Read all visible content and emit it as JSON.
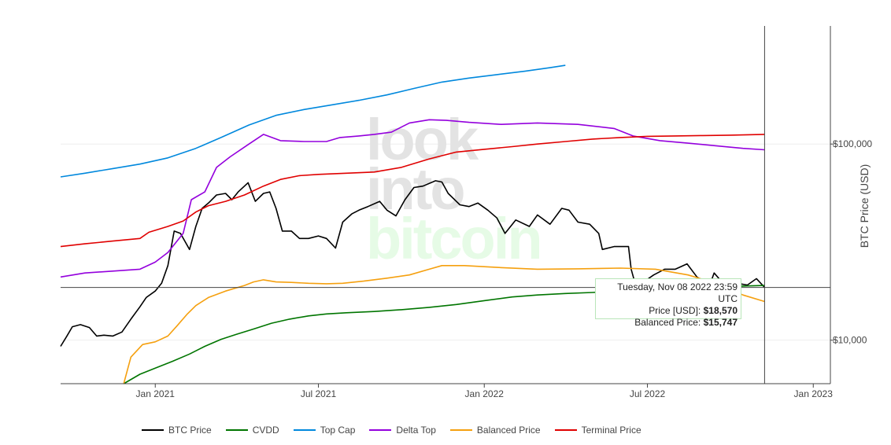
{
  "chart_data": {
    "type": "line",
    "scale_y": "log",
    "ylabel": "BTC Price (USD)",
    "x_range": [
      "2020-09-18",
      "2023-01-20"
    ],
    "y_range": [
      6000,
      400000
    ],
    "x_ticks": [
      {
        "date": "2021-01-01",
        "label": "Jan 2021"
      },
      {
        "date": "2021-07-01",
        "label": "Jul 2021"
      },
      {
        "date": "2022-01-01",
        "label": "Jan 2022"
      },
      {
        "date": "2022-07-01",
        "label": "Jul 2022"
      },
      {
        "date": "2023-01-01",
        "label": "Jan 2023"
      }
    ],
    "y_ticks": [
      {
        "value": 10000,
        "label": "$10,000"
      },
      {
        "value": 100000,
        "label": "$100,000"
      }
    ],
    "series": [
      {
        "name": "BTC Price",
        "color": "#000000",
        "points": [
          [
            "2020-09-18",
            9300
          ],
          [
            "2020-09-25",
            10500
          ],
          [
            "2020-10-01",
            11700
          ],
          [
            "2020-10-10",
            12000
          ],
          [
            "2020-10-20",
            11600
          ],
          [
            "2020-10-28",
            10500
          ],
          [
            "2020-11-05",
            10600
          ],
          [
            "2020-11-15",
            10500
          ],
          [
            "2020-11-25",
            11000
          ],
          [
            "2020-12-05",
            12800
          ],
          [
            "2020-12-15",
            14800
          ],
          [
            "2020-12-22",
            16500
          ],
          [
            "2021-01-01",
            17800
          ],
          [
            "2021-01-08",
            19500
          ],
          [
            "2021-01-15",
            24000
          ],
          [
            "2021-01-22",
            36000
          ],
          [
            "2021-01-29",
            35000
          ],
          [
            "2021-02-08",
            29000
          ],
          [
            "2021-02-15",
            38000
          ],
          [
            "2021-02-22",
            47000
          ],
          [
            "2021-03-01",
            50000
          ],
          [
            "2021-03-10",
            55000
          ],
          [
            "2021-03-20",
            56000
          ],
          [
            "2021-03-27",
            52000
          ],
          [
            "2021-04-03",
            57000
          ],
          [
            "2021-04-14",
            63500
          ],
          [
            "2021-04-22",
            51000
          ],
          [
            "2021-05-01",
            56000
          ],
          [
            "2021-05-08",
            57000
          ],
          [
            "2021-05-15",
            47000
          ],
          [
            "2021-05-22",
            36000
          ],
          [
            "2021-06-01",
            36000
          ],
          [
            "2021-06-10",
            33000
          ],
          [
            "2021-06-20",
            33000
          ],
          [
            "2021-07-01",
            34000
          ],
          [
            "2021-07-10",
            33000
          ],
          [
            "2021-07-20",
            29500
          ],
          [
            "2021-07-28",
            40000
          ],
          [
            "2021-08-07",
            44000
          ],
          [
            "2021-08-15",
            46000
          ],
          [
            "2021-08-25",
            48000
          ],
          [
            "2021-09-07",
            51000
          ],
          [
            "2021-09-15",
            46000
          ],
          [
            "2021-09-25",
            43000
          ],
          [
            "2021-10-05",
            52000
          ],
          [
            "2021-10-15",
            60000
          ],
          [
            "2021-10-25",
            61000
          ],
          [
            "2021-11-08",
            65000
          ],
          [
            "2021-11-15",
            64000
          ],
          [
            "2021-11-22",
            56000
          ],
          [
            "2021-12-05",
            49000
          ],
          [
            "2021-12-15",
            48000
          ],
          [
            "2021-12-25",
            50000
          ],
          [
            "2022-01-05",
            46000
          ],
          [
            "2022-01-15",
            42000
          ],
          [
            "2022-01-24",
            35000
          ],
          [
            "2022-02-05",
            41000
          ],
          [
            "2022-02-20",
            38000
          ],
          [
            "2022-03-01",
            43500
          ],
          [
            "2022-03-15",
            39000
          ],
          [
            "2022-03-28",
            47000
          ],
          [
            "2022-04-05",
            46000
          ],
          [
            "2022-04-15",
            40000
          ],
          [
            "2022-04-28",
            39000
          ],
          [
            "2022-05-08",
            35000
          ],
          [
            "2022-05-12",
            29000
          ],
          [
            "2022-05-25",
            30000
          ],
          [
            "2022-06-10",
            30000
          ],
          [
            "2022-06-13",
            23000
          ],
          [
            "2022-06-18",
            19000
          ],
          [
            "2022-06-28",
            20000
          ],
          [
            "2022-07-08",
            21500
          ],
          [
            "2022-07-20",
            23000
          ],
          [
            "2022-08-01",
            23000
          ],
          [
            "2022-08-14",
            24500
          ],
          [
            "2022-08-25",
            21000
          ],
          [
            "2022-09-08",
            19000
          ],
          [
            "2022-09-13",
            22000
          ],
          [
            "2022-09-25",
            19000
          ],
          [
            "2022-10-08",
            19500
          ],
          [
            "2022-10-20",
            19100
          ],
          [
            "2022-10-30",
            20600
          ],
          [
            "2022-11-08",
            18570
          ]
        ]
      },
      {
        "name": "CVDD",
        "color": "#007500",
        "points": [
          [
            "2020-11-27",
            6000
          ],
          [
            "2020-12-15",
            6700
          ],
          [
            "2021-01-01",
            7200
          ],
          [
            "2021-01-20",
            7800
          ],
          [
            "2021-02-08",
            8500
          ],
          [
            "2021-02-25",
            9300
          ],
          [
            "2021-03-15",
            10100
          ],
          [
            "2021-04-01",
            10700
          ],
          [
            "2021-04-20",
            11400
          ],
          [
            "2021-05-10",
            12200
          ],
          [
            "2021-05-30",
            12800
          ],
          [
            "2021-06-20",
            13300
          ],
          [
            "2021-07-10",
            13600
          ],
          [
            "2021-08-01",
            13800
          ],
          [
            "2021-09-01",
            14000
          ],
          [
            "2021-10-01",
            14300
          ],
          [
            "2021-11-01",
            14700
          ],
          [
            "2021-12-01",
            15200
          ],
          [
            "2022-01-01",
            15900
          ],
          [
            "2022-02-01",
            16600
          ],
          [
            "2022-03-01",
            17000
          ],
          [
            "2022-04-01",
            17300
          ],
          [
            "2022-05-01",
            17500
          ],
          [
            "2022-06-01",
            17800
          ],
          [
            "2022-07-01",
            18000
          ],
          [
            "2022-08-01",
            18200
          ],
          [
            "2022-09-01",
            18500
          ],
          [
            "2022-10-01",
            18800
          ],
          [
            "2022-11-08",
            19000
          ]
        ]
      },
      {
        "name": "Top Cap",
        "color": "#0088dd",
        "points": [
          [
            "2020-09-18",
            68000
          ],
          [
            "2020-10-15",
            71000
          ],
          [
            "2020-11-15",
            75000
          ],
          [
            "2020-12-15",
            79000
          ],
          [
            "2021-01-15",
            85000
          ],
          [
            "2021-02-15",
            95000
          ],
          [
            "2021-03-15",
            108000
          ],
          [
            "2021-04-15",
            125000
          ],
          [
            "2021-05-15",
            140000
          ],
          [
            "2021-06-15",
            150000
          ],
          [
            "2021-07-15",
            158000
          ],
          [
            "2021-08-15",
            167000
          ],
          [
            "2021-09-15",
            178000
          ],
          [
            "2021-10-15",
            192000
          ],
          [
            "2021-11-15",
            207000
          ],
          [
            "2021-12-15",
            217000
          ],
          [
            "2022-01-15",
            226000
          ],
          [
            "2022-02-15",
            235000
          ],
          [
            "2022-03-15",
            245000
          ],
          [
            "2022-04-01",
            252000
          ]
        ]
      },
      {
        "name": "Delta Top",
        "color": "#9400dd",
        "points": [
          [
            "2020-09-18",
            21000
          ],
          [
            "2020-10-15",
            22000
          ],
          [
            "2020-11-15",
            22500
          ],
          [
            "2020-12-15",
            23000
          ],
          [
            "2021-01-01",
            25000
          ],
          [
            "2021-01-15",
            28000
          ],
          [
            "2021-02-01",
            35000
          ],
          [
            "2021-02-10",
            52000
          ],
          [
            "2021-02-25",
            57000
          ],
          [
            "2021-03-10",
            76000
          ],
          [
            "2021-03-25",
            86000
          ],
          [
            "2021-04-15",
            100000
          ],
          [
            "2021-05-01",
            112000
          ],
          [
            "2021-05-20",
            104000
          ],
          [
            "2021-06-15",
            103000
          ],
          [
            "2021-07-10",
            103000
          ],
          [
            "2021-07-25",
            108000
          ],
          [
            "2021-08-15",
            110000
          ],
          [
            "2021-09-01",
            112000
          ],
          [
            "2021-09-20",
            115000
          ],
          [
            "2021-10-10",
            128000
          ],
          [
            "2021-11-01",
            133000
          ],
          [
            "2021-11-20",
            132000
          ],
          [
            "2021-12-15",
            129000
          ],
          [
            "2022-01-20",
            126000
          ],
          [
            "2022-03-01",
            128000
          ],
          [
            "2022-04-15",
            126000
          ],
          [
            "2022-05-25",
            120000
          ],
          [
            "2022-06-15",
            110000
          ],
          [
            "2022-07-15",
            104000
          ],
          [
            "2022-08-15",
            101000
          ],
          [
            "2022-09-15",
            98000
          ],
          [
            "2022-10-15",
            95000
          ],
          [
            "2022-11-08",
            93500
          ]
        ]
      },
      {
        "name": "Balanced Price",
        "color": "#f5a00f",
        "points": [
          [
            "2020-11-27",
            6000
          ],
          [
            "2020-12-05",
            8200
          ],
          [
            "2020-12-18",
            9500
          ],
          [
            "2021-01-01",
            9800
          ],
          [
            "2021-01-15",
            10500
          ],
          [
            "2021-01-25",
            11800
          ],
          [
            "2021-02-05",
            13500
          ],
          [
            "2021-02-15",
            15000
          ],
          [
            "2021-03-01",
            16500
          ],
          [
            "2021-03-20",
            17800
          ],
          [
            "2021-04-10",
            19000
          ],
          [
            "2021-04-20",
            19800
          ],
          [
            "2021-05-01",
            20300
          ],
          [
            "2021-05-15",
            19800
          ],
          [
            "2021-06-01",
            19700
          ],
          [
            "2021-06-20",
            19500
          ],
          [
            "2021-07-10",
            19400
          ],
          [
            "2021-07-28",
            19500
          ],
          [
            "2021-08-20",
            20000
          ],
          [
            "2021-09-15",
            20700
          ],
          [
            "2021-10-10",
            21500
          ],
          [
            "2021-11-01",
            23000
          ],
          [
            "2021-11-15",
            24000
          ],
          [
            "2021-12-10",
            24000
          ],
          [
            "2022-01-15",
            23500
          ],
          [
            "2022-03-01",
            23000
          ],
          [
            "2022-04-15",
            23100
          ],
          [
            "2022-06-01",
            23300
          ],
          [
            "2022-07-10",
            23000
          ],
          [
            "2022-08-15",
            21500
          ],
          [
            "2022-09-15",
            19500
          ],
          [
            "2022-10-15",
            17000
          ],
          [
            "2022-11-08",
            15747
          ]
        ]
      },
      {
        "name": "Terminal Price",
        "color": "#e00000",
        "points": [
          [
            "2020-09-18",
            30000
          ],
          [
            "2020-10-15",
            31000
          ],
          [
            "2020-11-15",
            32000
          ],
          [
            "2020-12-15",
            33000
          ],
          [
            "2020-12-25",
            35500
          ],
          [
            "2021-01-15",
            38000
          ],
          [
            "2021-02-01",
            40500
          ],
          [
            "2021-02-15",
            45000
          ],
          [
            "2021-03-01",
            48500
          ],
          [
            "2021-03-20",
            51000
          ],
          [
            "2021-04-10",
            55000
          ],
          [
            "2021-05-01",
            61000
          ],
          [
            "2021-05-20",
            66000
          ],
          [
            "2021-06-10",
            69000
          ],
          [
            "2021-07-01",
            70000
          ],
          [
            "2021-08-01",
            71000
          ],
          [
            "2021-09-01",
            72000
          ],
          [
            "2021-10-01",
            76000
          ],
          [
            "2021-11-01",
            84000
          ],
          [
            "2021-12-01",
            91000
          ],
          [
            "2022-01-01",
            94000
          ],
          [
            "2022-02-01",
            97000
          ],
          [
            "2022-03-01",
            100000
          ],
          [
            "2022-04-01",
            103000
          ],
          [
            "2022-05-01",
            106000
          ],
          [
            "2022-06-01",
            108000
          ],
          [
            "2022-07-01",
            109500
          ],
          [
            "2022-08-01",
            110000
          ],
          [
            "2022-09-01",
            110500
          ],
          [
            "2022-10-01",
            111000
          ],
          [
            "2022-11-08",
            112000
          ]
        ]
      }
    ],
    "hover": {
      "date": "2022-11-08",
      "value": 18570
    },
    "grid": true,
    "legend_position": "bottom"
  },
  "watermark": {
    "line1": "look",
    "line2": "into",
    "line3": "bitcoin"
  },
  "tooltip": {
    "date": "Tuesday, Nov 08 2022 23:59 UTC",
    "price_label": "Price [USD]: ",
    "price_value": "$18,570",
    "balanced_label": "Balanced Price: ",
    "balanced_value": "$15,747"
  }
}
